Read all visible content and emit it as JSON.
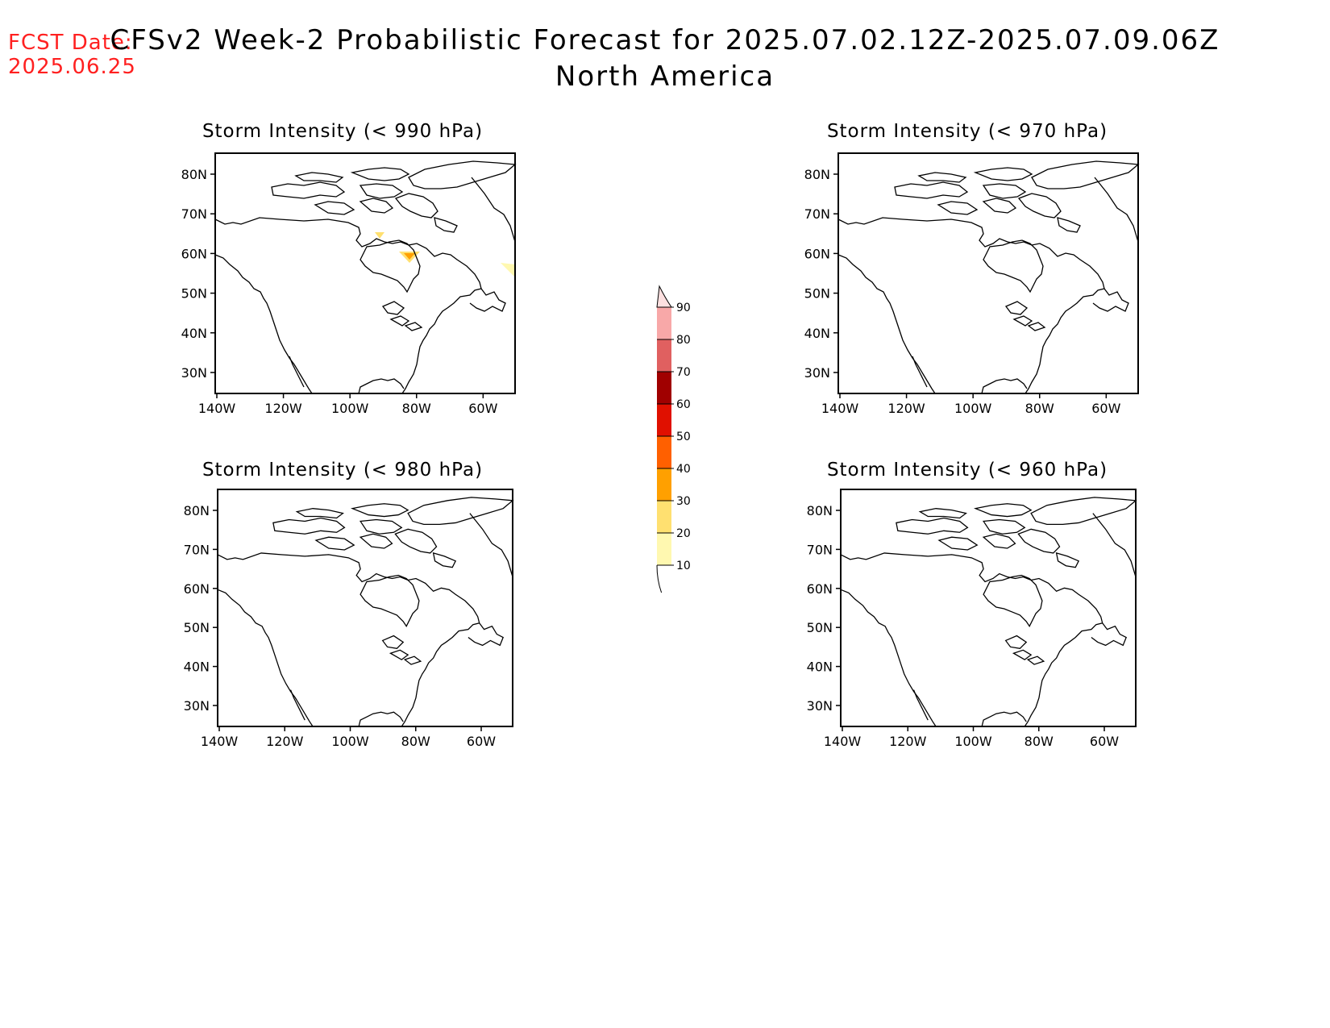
{
  "header": {
    "fcst_label": "FCST Date:",
    "fcst_date": "2025.06.25",
    "title": "CFSv2 Week-2 Probabilistic Forecast for 2025.07.02.12Z-2025.07.09.06Z",
    "subtitle": "North America"
  },
  "axes": {
    "lat_ticks": [
      "80N",
      "70N",
      "60N",
      "50N",
      "40N",
      "30N"
    ],
    "lon_ticks": [
      "140W",
      "120W",
      "100W",
      "80W",
      "60W"
    ]
  },
  "panels": [
    {
      "title": "Storm Intensity (< 990 hPa)",
      "has_shading": true
    },
    {
      "title": "Storm Intensity (< 970 hPa)",
      "has_shading": false
    },
    {
      "title": "Storm Intensity (< 980 hPa)",
      "has_shading": false
    },
    {
      "title": "Storm Intensity (< 960 hPa)",
      "has_shading": false
    }
  ],
  "colorbar": {
    "labels": [
      "90",
      "80",
      "70",
      "60",
      "50",
      "40",
      "30",
      "20",
      "10"
    ],
    "colors": [
      "#f8a8a8",
      "#e06060",
      "#a00000",
      "#e01000",
      "#ff6000",
      "#ffa000",
      "#ffe070",
      "#fff8b0"
    ],
    "top_color": "#fde0e0"
  }
}
